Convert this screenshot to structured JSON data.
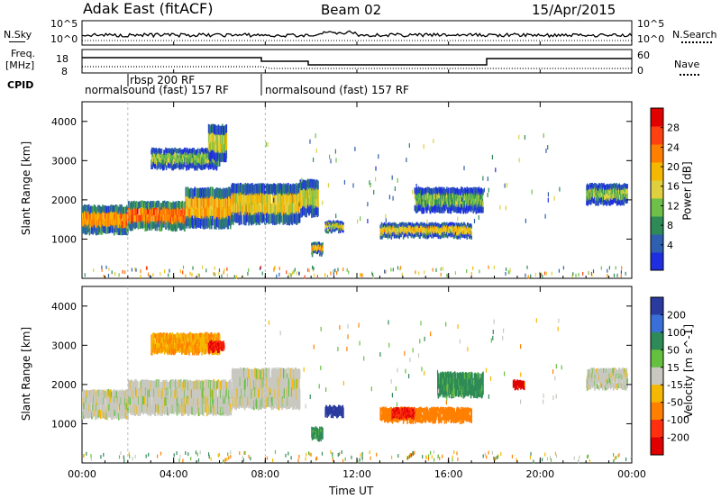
{
  "header": {
    "title": "Adak East (fitACF)",
    "beam": "Beam 02",
    "date": "15/Apr/2015"
  },
  "noise_panel": {
    "left_label": "N.Sky",
    "right_label": "N.Search",
    "left_ticks": [
      "10^5",
      "10^0"
    ],
    "right_ticks": [
      "10^5",
      "10^0"
    ]
  },
  "freq_panel": {
    "left_label_1": "Freq.",
    "left_label_2": "[MHz]",
    "right_label": "Nave",
    "left_ticks": [
      "18",
      "8"
    ],
    "right_ticks": [
      "60",
      "0"
    ]
  },
  "cpid": {
    "label": "CPID",
    "segments": [
      "normalsound (fast) 157 RF",
      "rbsp 200 RF",
      "normalsound (fast) 157 RF"
    ]
  },
  "colors": {
    "power": [
      "#1f2fe0",
      "#2f5fb0",
      "#2e8b57",
      "#6dbf4a",
      "#e0d040",
      "#f5b800",
      "#ff7f00",
      "#ff4010",
      "#e00000"
    ],
    "velocity": [
      "#2a3a9e",
      "#3a6fd8",
      "#2e8b57",
      "#66c040",
      "#c8c8c0",
      "#f5b800",
      "#ff7f00",
      "#ff3010",
      "#e00000"
    ]
  },
  "chart_data": [
    {
      "type": "heatmap",
      "name": "power",
      "ylabel": "Slant Range [km]",
      "xlabel": "",
      "xlim": [
        0,
        24
      ],
      "ylim": [
        0,
        4500
      ],
      "yticks": [
        "4000",
        "3000",
        "2000",
        "1000"
      ],
      "xticks": [
        "00:00",
        "04:00",
        "08:00",
        "12:00",
        "16:00",
        "20:00",
        "00:00"
      ],
      "colorbar_label": "Power [dB]",
      "colorbar_ticks": [
        "28",
        "24",
        "20",
        "16",
        "12",
        "8",
        "4"
      ],
      "bands": [
        {
          "t0": 0.0,
          "t1": 2.0,
          "r0": 1150,
          "r1": 1850,
          "value": 14
        },
        {
          "t0": 2.0,
          "t1": 4.5,
          "r0": 1250,
          "r1": 1950,
          "value": 16
        },
        {
          "t0": 4.5,
          "t1": 6.5,
          "r0": 1300,
          "r1": 2300,
          "value": 12
        },
        {
          "t0": 6.5,
          "t1": 9.5,
          "r0": 1400,
          "r1": 2400,
          "value": 10
        },
        {
          "t0": 9.5,
          "t1": 10.3,
          "r0": 1600,
          "r1": 2500,
          "value": 8
        },
        {
          "t0": 3.0,
          "t1": 6.0,
          "r0": 2800,
          "r1": 3300,
          "value": 6
        },
        {
          "t0": 5.5,
          "t1": 6.3,
          "r0": 3000,
          "r1": 3900,
          "value": 8
        },
        {
          "t0": 13.0,
          "t1": 17.0,
          "r0": 1050,
          "r1": 1400,
          "value": 10
        },
        {
          "t0": 10.0,
          "t1": 10.5,
          "r0": 600,
          "r1": 900,
          "value": 12
        },
        {
          "t0": 10.6,
          "t1": 11.4,
          "r0": 1200,
          "r1": 1450,
          "value": 8
        },
        {
          "t0": 14.5,
          "t1": 17.5,
          "r0": 1700,
          "r1": 2300,
          "value": 5
        },
        {
          "t0": 22.0,
          "t1": 23.8,
          "r0": 1900,
          "r1": 2400,
          "value": 6
        }
      ]
    },
    {
      "type": "heatmap",
      "name": "velocity",
      "ylabel": "Slant Range [km]",
      "xlabel": "Time UT",
      "xlim": [
        0,
        24
      ],
      "ylim": [
        0,
        4500
      ],
      "yticks": [
        "4000",
        "3000",
        "2000",
        "1000"
      ],
      "xticks": [
        "00:00",
        "04:00",
        "08:00",
        "12:00",
        "16:00",
        "20:00",
        "00:00"
      ],
      "colorbar_label": "Velocity [m s^-1]",
      "colorbar_ticks": [
        "200",
        "100",
        "50",
        "15",
        "-15",
        "-50",
        "-100",
        "-200"
      ],
      "bands": [
        {
          "t0": 0.0,
          "t1": 2.0,
          "r0": 1150,
          "r1": 1850,
          "value": 0
        },
        {
          "t0": 2.0,
          "t1": 6.5,
          "r0": 1250,
          "r1": 2100,
          "value": 0
        },
        {
          "t0": 6.5,
          "t1": 9.5,
          "r0": 1400,
          "r1": 2400,
          "value": 0
        },
        {
          "t0": 3.0,
          "t1": 6.0,
          "r0": 2800,
          "r1": 3300,
          "value": -30
        },
        {
          "t0": 5.5,
          "t1": 6.2,
          "r0": 2850,
          "r1": 3100,
          "value": -150
        },
        {
          "t0": 13.0,
          "t1": 17.0,
          "r0": 1050,
          "r1": 1400,
          "value": -60
        },
        {
          "t0": 13.5,
          "t1": 14.5,
          "r0": 1150,
          "r1": 1400,
          "value": -150
        },
        {
          "t0": 10.0,
          "t1": 10.5,
          "r0": 600,
          "r1": 900,
          "value": 40
        },
        {
          "t0": 10.6,
          "t1": 11.4,
          "r0": 1200,
          "r1": 1450,
          "value": 200
        },
        {
          "t0": 15.5,
          "t1": 17.5,
          "r0": 1700,
          "r1": 2300,
          "value": 40
        },
        {
          "t0": 18.8,
          "t1": 19.3,
          "r0": 1900,
          "r1": 2100,
          "value": -200
        },
        {
          "t0": 22.0,
          "t1": 23.8,
          "r0": 1900,
          "r1": 2400,
          "value": 0
        }
      ]
    }
  ]
}
